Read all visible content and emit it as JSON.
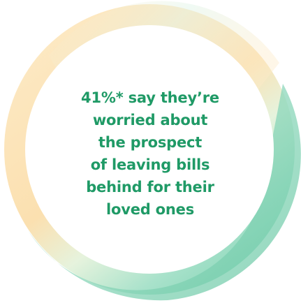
{
  "statistic": {
    "lines": [
      "41%* say they’re",
      "worried about",
      "the prospect",
      "of leaving bills",
      "behind for their",
      "loved ones"
    ]
  },
  "colors": {
    "text": "#1f9a66",
    "ring_light": "#fde8c2",
    "ring_peach": "#fcdfae",
    "ring_mint": "#d4f1e6",
    "ring_green": "#8fd9bf",
    "background": "#ffffff"
  }
}
